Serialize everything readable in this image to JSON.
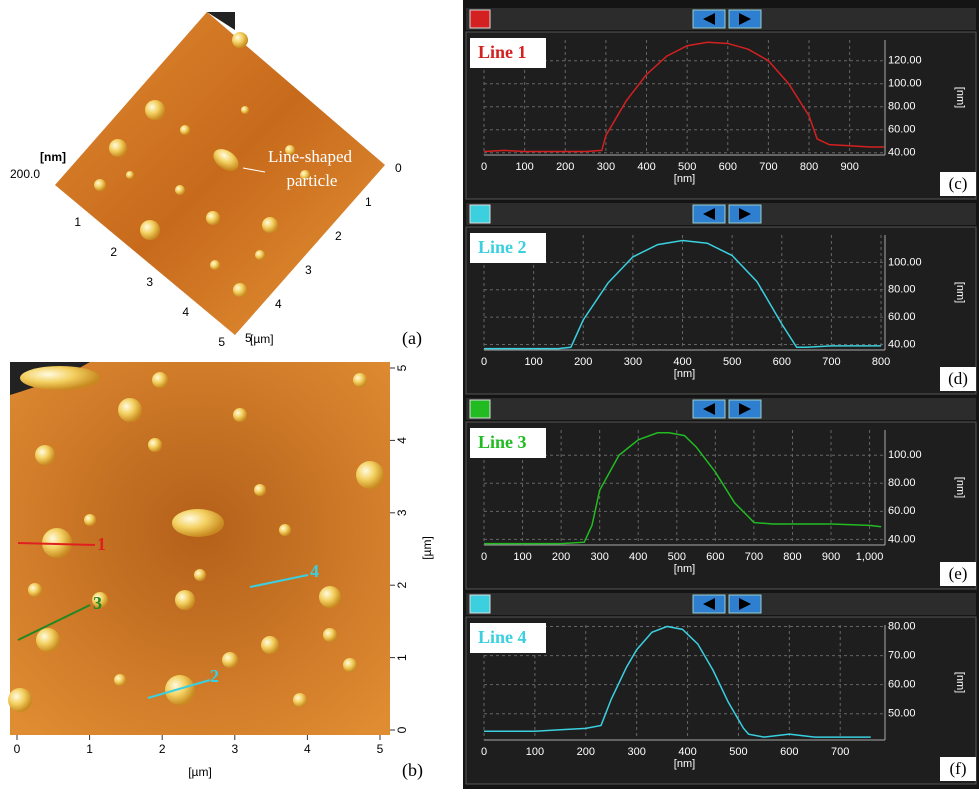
{
  "chart_data": [
    {
      "type": "line",
      "title": "Line 1",
      "panel_label": "(c)",
      "xlabel": "[nm]",
      "ylabel": "[nm]",
      "color": "#d42020",
      "x": [
        0,
        50,
        100,
        150,
        200,
        250,
        290,
        300,
        350,
        400,
        450,
        500,
        550,
        600,
        650,
        700,
        750,
        800,
        820,
        850,
        900,
        950,
        985
      ],
      "values": [
        41,
        42,
        41,
        41,
        41,
        41,
        42,
        55,
        85,
        108,
        124,
        133,
        136,
        135,
        130,
        120,
        100,
        72,
        52,
        47,
        46,
        45,
        45
      ],
      "xlim": [
        0,
        987
      ],
      "ylim": [
        38,
        138
      ],
      "xticks": [
        0,
        100,
        200,
        300,
        400,
        500,
        600,
        700,
        800,
        900
      ],
      "yticks": [
        {
          "value": 40,
          "label": "40.00"
        },
        {
          "value": 60,
          "label": "60.00"
        },
        {
          "value": 80,
          "label": "80.00"
        },
        {
          "value": 100,
          "label": "100.00"
        },
        {
          "value": 120,
          "label": "120.00"
        }
      ],
      "grid": true
    },
    {
      "type": "line",
      "title": "Line 2",
      "panel_label": "(d)",
      "xlabel": "[nm]",
      "ylabel": "[nm]",
      "color": "#3ad0e0",
      "x": [
        0,
        50,
        100,
        150,
        175,
        200,
        250,
        300,
        350,
        400,
        450,
        500,
        550,
        600,
        630,
        650,
        700,
        750,
        800
      ],
      "values": [
        37,
        37,
        37,
        37,
        38,
        58,
        85,
        104,
        113,
        116,
        114,
        105,
        86,
        55,
        38,
        38,
        39,
        39,
        39
      ],
      "xlim": [
        0,
        808
      ],
      "ylim": [
        36,
        120
      ],
      "xticks": [
        0,
        100,
        200,
        300,
        400,
        500,
        600,
        700,
        800
      ],
      "yticks": [
        {
          "value": 40,
          "label": "40.00"
        },
        {
          "value": 60,
          "label": "60.00"
        },
        {
          "value": 80,
          "label": "80.00"
        },
        {
          "value": 100,
          "label": "100.00"
        }
      ],
      "grid": true
    },
    {
      "type": "line",
      "title": "Line 3",
      "panel_label": "(e)",
      "xlabel": "[nm]",
      "ylabel": "[nm]",
      "color": "#22bb22",
      "x": [
        0,
        100,
        200,
        260,
        280,
        300,
        350,
        400,
        450,
        480,
        520,
        550,
        600,
        650,
        690,
        700,
        750,
        800,
        900,
        1000,
        1030
      ],
      "values": [
        37,
        37,
        37,
        38,
        50,
        75,
        100,
        111,
        116,
        116,
        114,
        106,
        88,
        66,
        55,
        52,
        51,
        51,
        51,
        50,
        49
      ],
      "xlim": [
        0,
        1040
      ],
      "ylim": [
        36,
        118
      ],
      "xticks": [
        0,
        100,
        200,
        300,
        400,
        500,
        600,
        700,
        800,
        900,
        {
          "value": 1000,
          "label": "1,000"
        }
      ],
      "yticks": [
        {
          "value": 40,
          "label": "40.00"
        },
        {
          "value": 60,
          "label": "60.00"
        },
        {
          "value": 80,
          "label": "80.00"
        },
        {
          "value": 100,
          "label": "100.00"
        }
      ],
      "grid": true
    },
    {
      "type": "line",
      "title": "Line 4",
      "panel_label": "(f)",
      "xlabel": "[nm]",
      "ylabel": "[nm]",
      "color": "#3ad0e0",
      "x": [
        0,
        50,
        100,
        150,
        200,
        230,
        250,
        280,
        300,
        330,
        360,
        390,
        420,
        450,
        480,
        510,
        520,
        550,
        600,
        650,
        700,
        760
      ],
      "values": [
        44,
        44,
        44,
        44.5,
        45,
        46,
        55,
        66,
        72,
        78,
        80,
        79,
        74,
        65,
        54,
        45,
        43,
        42,
        43,
        42,
        42,
        42
      ],
      "xlim": [
        0,
        788
      ],
      "ylim": [
        41,
        80.5
      ],
      "xticks": [
        0,
        100,
        200,
        300,
        400,
        500,
        600,
        700
      ],
      "yticks": [
        {
          "value": 50,
          "label": "50.00"
        },
        {
          "value": 60,
          "label": "60.00"
        },
        {
          "value": 70,
          "label": "70.00"
        },
        {
          "value": 80,
          "label": "80.00"
        }
      ],
      "grid": true
    }
  ],
  "image_a": {
    "panel_label": "(a)",
    "z_unit": "[nm]",
    "z_max": "200.0",
    "annotation_1": "Line-shaped",
    "annotation_2": "particle",
    "left_ticks": [
      1,
      2,
      3,
      4,
      5
    ],
    "right_ticks": [
      0,
      1,
      2,
      3,
      4,
      5
    ],
    "unit": "[µm]"
  },
  "image_b": {
    "panel_label": "(b)",
    "xticks": [
      0,
      1,
      2,
      3,
      4,
      5
    ],
    "yticks": [
      0,
      1,
      2,
      3,
      4,
      5
    ],
    "xlabel": "[µm]",
    "ylabel": "[µm]",
    "lines": [
      "1",
      "2",
      "3",
      "4"
    ]
  }
}
